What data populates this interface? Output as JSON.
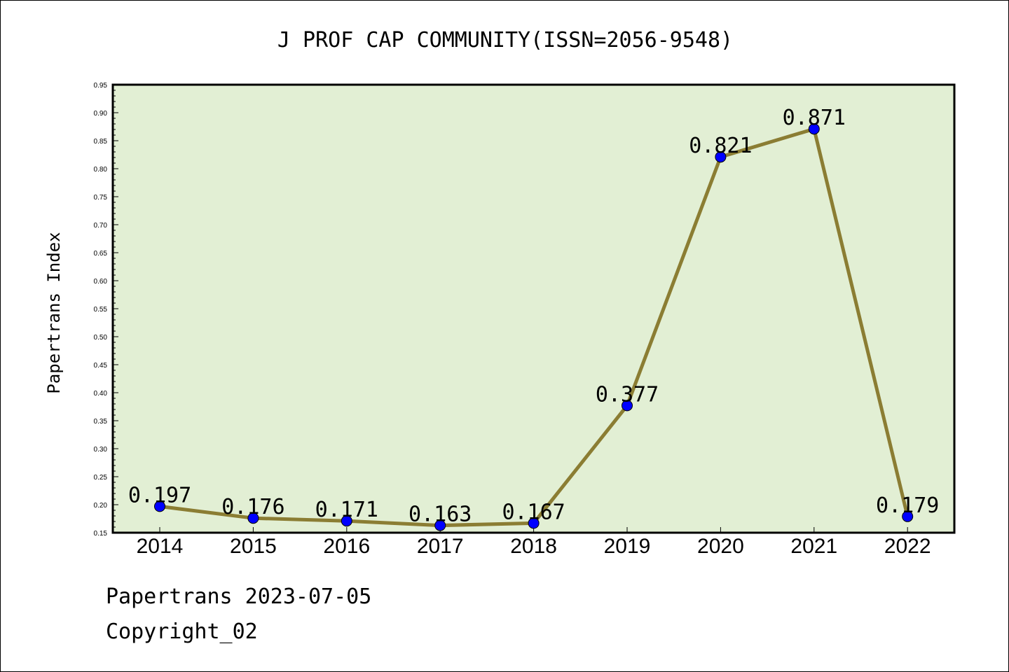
{
  "chart_data": {
    "type": "line",
    "title": "J PROF CAP COMMUNITY(ISSN=2056-9548)",
    "xlabel": "",
    "ylabel": "Papertrans Index",
    "categories": [
      "2014",
      "2015",
      "2016",
      "2017",
      "2018",
      "2019",
      "2020",
      "2021",
      "2022"
    ],
    "series": [
      {
        "values": [
          0.197,
          0.176,
          0.171,
          0.163,
          0.167,
          0.377,
          0.821,
          0.871,
          0.179
        ],
        "labels": [
          "0.197",
          "0.176",
          "0.171",
          "0.163",
          "0.167",
          "0.377",
          "0.821",
          "0.871",
          "0.179"
        ]
      }
    ],
    "ylim": [
      0.15,
      0.95
    ],
    "yticks": [
      "0.15",
      "0.20",
      "0.25",
      "0.30",
      "0.35",
      "0.40",
      "0.45",
      "0.50",
      "0.55",
      "0.60",
      "0.65",
      "0.70",
      "0.75",
      "0.80",
      "0.85",
      "0.90",
      "0.95"
    ],
    "grid": false,
    "legend": "none",
    "colors": {
      "plot_background": "#e2efd4",
      "line": "#8b7d33",
      "marker": "#0000ff"
    }
  },
  "footer": {
    "line1": "Papertrans 2023-07-05",
    "line2": "Copyright_02"
  }
}
